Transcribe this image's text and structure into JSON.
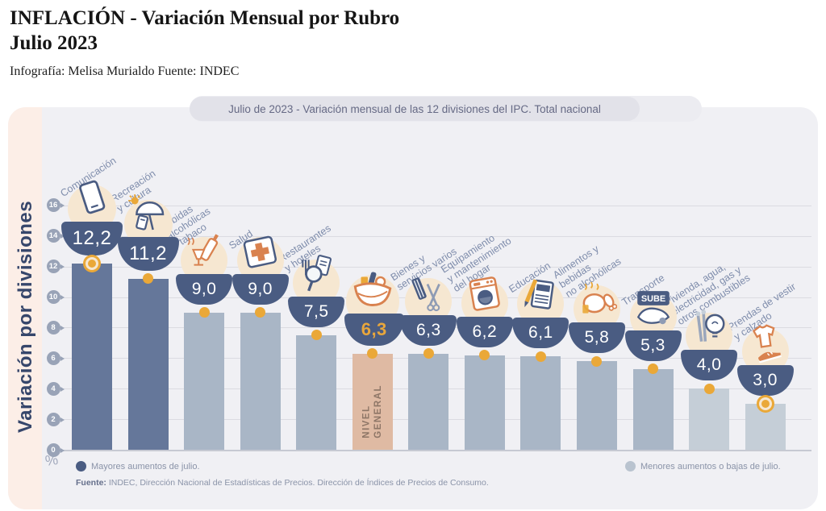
{
  "header": {
    "title_line1": "INFLACIÓN - Variación Mensual por Rubro",
    "title_line2": "Julio 2023",
    "credit": "Infografía: Melisa Murialdo Fuente: INDEC"
  },
  "banner": {
    "text": "Julio de 2023 - Variación mensual de las 12 divisiones del IPC. Total nacional"
  },
  "axis": {
    "label": "Variación por divisiones",
    "unit": "%",
    "ticks": [
      0,
      2,
      4,
      6,
      8,
      10,
      12,
      14,
      16
    ]
  },
  "legend": {
    "high": "Mayores aumentos de julio.",
    "low": "Menores aumentos o bajas de julio."
  },
  "source": {
    "label": "Fuente:",
    "text": " INDEC, Dirección Nacional de Estadísticas de Precios. Dirección de Índices de Precios de Consumo."
  },
  "colors": {
    "bar_high": "#65779a",
    "bar_mid": "#a9b6c6",
    "bar_low": "#c5ced7",
    "bar_general": "#dfbaa3",
    "accent_orange": "#eaa838",
    "badge_navy": "#4a5c82",
    "general_value": "#e8a63c"
  },
  "chart_data": {
    "type": "bar",
    "title": "Julio de 2023 - Variación mensual de las 12 divisiones del IPC. Total nacional",
    "xlabel": "",
    "ylabel": "Variación por divisiones",
    "unit": "%",
    "ylim": [
      0,
      16
    ],
    "yticks": [
      0,
      2,
      4,
      6,
      8,
      10,
      12,
      14,
      16
    ],
    "grid": true,
    "legend_position": "bottom",
    "categories": [
      "Comunicación",
      "Recreación y cultura",
      "Bebidas alcohólicas y tabaco",
      "Salud",
      "Restaurantes y hoteles",
      "Nivel general",
      "Bienes y servicios varios",
      "Equipamiento y mantenimiento del hogar",
      "Educación",
      "Alimentos y bebidas no alcohólicas",
      "Transporte",
      "Vivienda, agua, electricidad, gas y otros combustibles",
      "Prendas de vestir y calzado"
    ],
    "values": [
      12.2,
      11.2,
      9.0,
      9.0,
      7.5,
      6.3,
      6.3,
      6.2,
      6.1,
      5.8,
      5.3,
      4.0,
      3.0
    ],
    "bars": [
      {
        "label": "Comunicación",
        "label_display": "Comunicación",
        "value": 12.2,
        "value_display": "12,2",
        "group": "high",
        "icon": "smartphone-icon",
        "dot": "ring"
      },
      {
        "label": "Recreación y cultura",
        "label_display": "Recreación\ny cultura",
        "value": 11.2,
        "value_display": "11,2",
        "group": "high",
        "icon": "beach-umbrella-icon",
        "dot": "solid"
      },
      {
        "label": "Bebidas alcohólicas y tabaco",
        "label_display": "Bebidas\nalcohólicas\ny tabaco",
        "value": 9.0,
        "value_display": "9,0",
        "group": "mid",
        "icon": "wine-and-cigarette-icon",
        "dot": "solid"
      },
      {
        "label": "Salud",
        "label_display": "Salud",
        "value": 9.0,
        "value_display": "9,0",
        "group": "mid",
        "icon": "first-aid-kit-icon",
        "dot": "solid"
      },
      {
        "label": "Restaurantes y hoteles",
        "label_display": "Restaurantes\ny hoteles",
        "value": 7.5,
        "value_display": "7,5",
        "group": "mid",
        "icon": "restaurant-menu-magnifier-icon",
        "dot": "solid"
      },
      {
        "label": "Nivel general",
        "label_display": "",
        "bar_text": "NIVEL\nGENERAL",
        "value": 6.3,
        "value_display": "6,3",
        "group": "general",
        "icon": "shopping-basket-icon",
        "dot": "solid"
      },
      {
        "label": "Bienes y servicios varios",
        "label_display": "Bienes y\nservicios varios",
        "value": 6.3,
        "value_display": "6,3",
        "group": "mid",
        "icon": "scissors-comb-icon",
        "dot": "solid"
      },
      {
        "label": "Equipamiento y mantenimiento del hogar",
        "label_display": "Equipamiento\ny mantenimiento\ndel hogar",
        "value": 6.2,
        "value_display": "6,2",
        "group": "mid",
        "icon": "washing-machine-icon",
        "dot": "solid"
      },
      {
        "label": "Educación",
        "label_display": "Educación",
        "value": 6.1,
        "value_display": "6,1",
        "group": "mid",
        "icon": "notebook-pencil-icon",
        "dot": "solid"
      },
      {
        "label": "Alimentos y bebidas no alcohólicas",
        "label_display": "Alimentos y\nbebidas\nno alcohólicas",
        "value": 5.8,
        "value_display": "5,8",
        "group": "mid",
        "icon": "roast-chicken-icon",
        "dot": "solid"
      },
      {
        "label": "Transporte",
        "label_display": "Transporte",
        "value": 5.3,
        "value_display": "5,3",
        "group": "mid",
        "icon": "sube-card-icon",
        "dot": "solid"
      },
      {
        "label": "Vivienda, agua, electricidad, gas y otros combustibles",
        "label_display": "Vivienda, agua,\nelectricidad, gas y\notros combustibles",
        "value": 4.0,
        "value_display": "4,0",
        "group": "low",
        "icon": "lightbulb-matches-icon",
        "dot": "solid"
      },
      {
        "label": "Prendas de vestir y calzado",
        "label_display": "Prendas de vestir\ny calzado",
        "value": 3.0,
        "value_display": "3,0",
        "group": "low",
        "icon": "tshirt-sneaker-icon",
        "dot": "ring"
      }
    ]
  }
}
